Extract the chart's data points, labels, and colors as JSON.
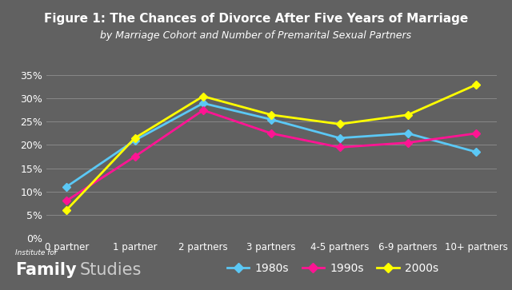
{
  "title": "Figure 1: The Chances of Divorce After Five Years of Marriage",
  "subtitle": "by Marriage Cohort and Number of Premarital Sexual Partners",
  "categories": [
    "0 partner",
    "1 partner",
    "2 partners",
    "3 partners",
    "4-5 partners",
    "6-9 partners",
    "10+ partners"
  ],
  "series_order": [
    "1980s",
    "1990s",
    "2000s"
  ],
  "series": {
    "1980s": [
      0.11,
      0.21,
      0.29,
      0.255,
      0.215,
      0.225,
      0.185
    ],
    "1990s": [
      0.08,
      0.175,
      0.275,
      0.225,
      0.195,
      0.205,
      0.225
    ],
    "2000s": [
      0.06,
      0.215,
      0.305,
      0.265,
      0.245,
      0.265,
      0.33
    ]
  },
  "colors": {
    "1980s": "#5bc8f5",
    "1990s": "#ff1493",
    "2000s": "#ffff00"
  },
  "background_color": "#616161",
  "text_color": "#ffffff",
  "grid_color": "#888888",
  "ylim": [
    0,
    0.375
  ],
  "yticks": [
    0.0,
    0.05,
    0.1,
    0.15,
    0.2,
    0.25,
    0.3,
    0.35
  ],
  "legend_labels": [
    "1980s",
    "1990s",
    "2000s"
  ],
  "institute_text": "Institute for",
  "family_text": "Family",
  "studies_text": "Studies"
}
